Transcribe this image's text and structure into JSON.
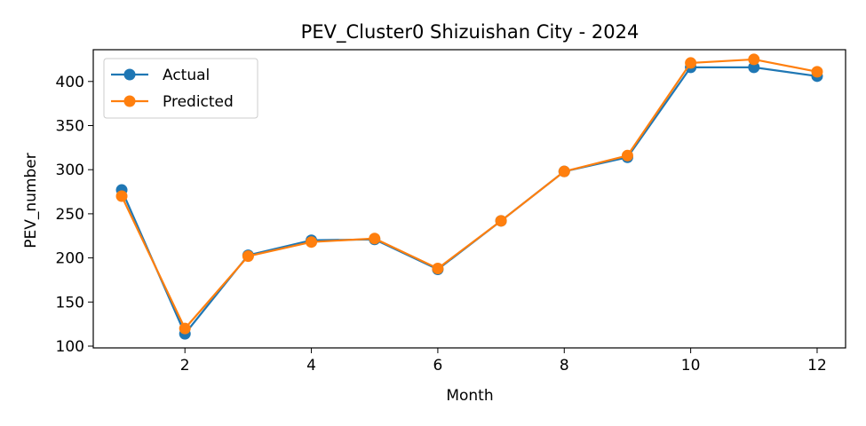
{
  "chart_data": {
    "type": "line",
    "title": "PEV_Cluster0 Shizuishan City - 2024",
    "xlabel": "Month",
    "ylabel": "PEV_number",
    "x": [
      1,
      2,
      3,
      4,
      5,
      6,
      7,
      8,
      9,
      10,
      11,
      12
    ],
    "xlim": [
      0.55,
      12.45
    ],
    "ylim": [
      98,
      436
    ],
    "xticks": [
      2,
      4,
      6,
      8,
      10,
      12
    ],
    "yticks": [
      100,
      150,
      200,
      250,
      300,
      350,
      400
    ],
    "grid": false,
    "legend": "upper-left",
    "series": [
      {
        "name": "Actual",
        "color": "#1f77b4",
        "values": [
          277,
          114,
          203,
          220,
          221,
          187,
          242,
          298,
          314,
          416,
          416,
          406
        ]
      },
      {
        "name": "Predicted",
        "color": "#ff7f0e",
        "values": [
          270,
          120,
          202,
          218,
          222,
          188,
          242,
          298,
          316,
          421,
          425,
          411
        ]
      }
    ]
  }
}
